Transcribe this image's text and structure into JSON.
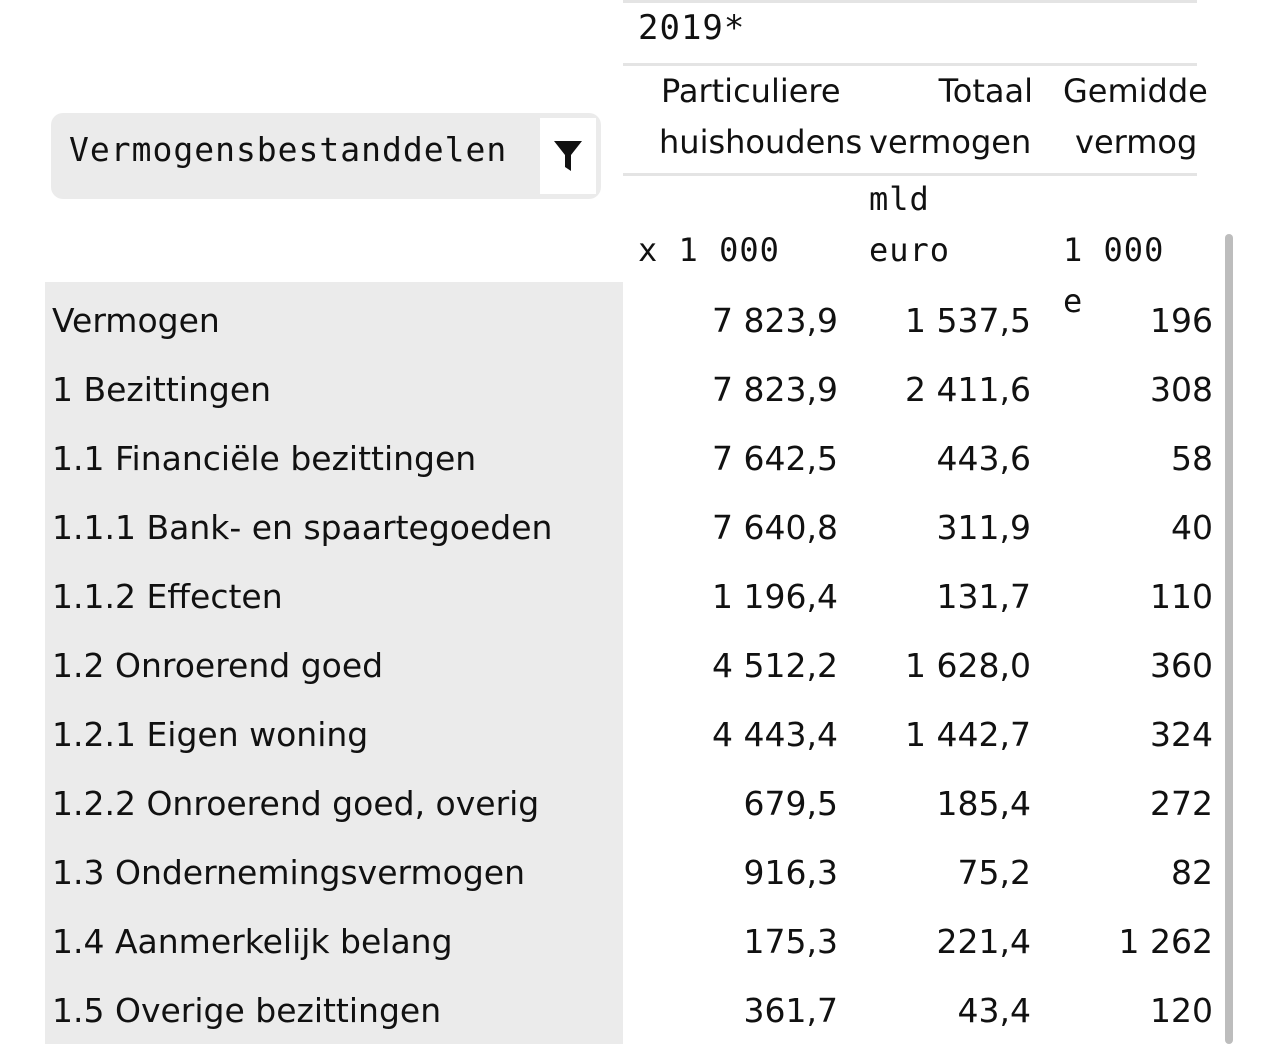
{
  "year_header": "2019*",
  "filter": {
    "label": "Vermogensbestanddelen",
    "icon": "funnel-filter-icon"
  },
  "columns": [
    {
      "head_line1": "Particuliere",
      "head_line2": "huishoudens",
      "unit_line1": "",
      "unit_line2": "x 1 000"
    },
    {
      "head_line1": "Totaal",
      "head_line2": "vermogen",
      "unit_line1": "mld",
      "unit_line2": "euro"
    },
    {
      "head_line1": "Gemidde",
      "head_line2": "vermog",
      "unit_line1": "",
      "unit_line2": "1 000 e"
    }
  ],
  "rows": [
    {
      "label": "Vermogen",
      "values": [
        "7 823,9",
        "1 537,5",
        "196"
      ]
    },
    {
      "label": "1 Bezittingen",
      "values": [
        "7 823,9",
        "2 411,6",
        "308"
      ]
    },
    {
      "label": "1.1 Financiële bezittingen",
      "values": [
        "7 642,5",
        "443,6",
        "58"
      ]
    },
    {
      "label": "1.1.1 Bank- en spaartegoeden",
      "values": [
        "7 640,8",
        "311,9",
        "40"
      ]
    },
    {
      "label": "1.1.2 Effecten",
      "values": [
        "1 196,4",
        "131,7",
        "110"
      ]
    },
    {
      "label": "1.2 Onroerend goed",
      "values": [
        "4 512,2",
        "1 628,0",
        "360"
      ]
    },
    {
      "label": "1.2.1 Eigen woning",
      "values": [
        "4 443,4",
        "1 442,7",
        "324"
      ]
    },
    {
      "label": "1.2.2 Onroerend goed, overig",
      "values": [
        "679,5",
        "185,4",
        "272"
      ]
    },
    {
      "label": "1.3 Ondernemingsvermogen",
      "values": [
        "916,3",
        "75,2",
        "82"
      ]
    },
    {
      "label": "1.4 Aanmerkelijk belang",
      "values": [
        "175,3",
        "221,4",
        "1 262"
      ]
    },
    {
      "label": "1.5 Overige bezittingen",
      "values": [
        "361,7",
        "43,4",
        "120"
      ]
    }
  ]
}
